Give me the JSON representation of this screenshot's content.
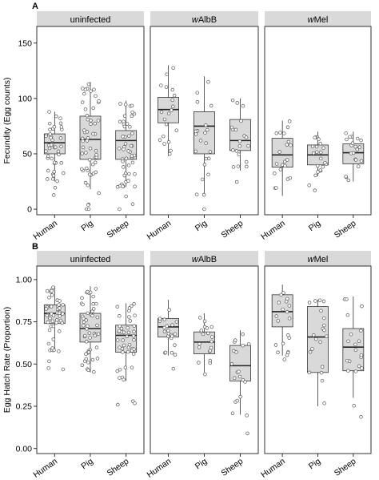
{
  "panels": [
    {
      "tag": "A",
      "ylabel": "Fecundity (Egg counts)",
      "ylim": [
        -5,
        165
      ],
      "yticks": [
        0,
        50,
        100,
        150
      ],
      "ytick_labels": [
        "0",
        "50",
        "100",
        "150"
      ],
      "facets": [
        {
          "label": "uninfected",
          "italic_prefix": ""
        },
        {
          "label": "Albb",
          "italic_prefix": "w",
          "rest": "AlbB"
        },
        {
          "label": "Mel",
          "italic_prefix": "w",
          "rest": "Mel"
        }
      ],
      "categories": [
        "Human",
        "Pig",
        "Sheep"
      ],
      "boxes": [
        [
          {
            "q1": 50,
            "median": 60,
            "q3": 68,
            "lo": 25,
            "hi": 88,
            "n": 45
          },
          {
            "q1": 45,
            "median": 63,
            "q3": 84,
            "lo": 18,
            "hi": 115,
            "n": 55
          },
          {
            "q1": 45,
            "median": 62,
            "q3": 71,
            "lo": 20,
            "hi": 98,
            "n": 50
          }
        ],
        [
          {
            "q1": 78,
            "median": 90,
            "q3": 101,
            "lo": 48,
            "hi": 130,
            "n": 20
          },
          {
            "q1": 50,
            "median": 75,
            "q3": 88,
            "lo": 12,
            "hi": 120,
            "n": 22
          },
          {
            "q1": 53,
            "median": 62,
            "q3": 81,
            "lo": 35,
            "hi": 100,
            "n": 20
          }
        ],
        [
          {
            "q1": 38,
            "median": 49,
            "q3": 64,
            "lo": 12,
            "hi": 80,
            "n": 20
          },
          {
            "q1": 40,
            "median": 49,
            "q3": 58,
            "lo": 30,
            "hi": 70,
            "n": 22
          },
          {
            "q1": 41,
            "median": 51,
            "q3": 59,
            "lo": 25,
            "hi": 70,
            "n": 20
          }
        ]
      ]
    },
    {
      "tag": "B",
      "ylabel": "Egg Hatch Rate (Proportion)",
      "ylim": [
        -0.03,
        1.08
      ],
      "yticks": [
        0,
        0.25,
        0.5,
        0.75,
        1
      ],
      "ytick_labels": [
        "0.00",
        "0.25",
        "0.50",
        "0.75",
        "1.00"
      ],
      "facets": [
        {
          "label": "uninfected",
          "italic_prefix": ""
        },
        {
          "label": "AlbB",
          "italic_prefix": "w",
          "rest": "AlbB"
        },
        {
          "label": "Mel",
          "italic_prefix": "w",
          "rest": "Mel"
        }
      ],
      "categories": [
        "Human",
        "Pig",
        "Sheep"
      ],
      "boxes": [
        [
          {
            "q1": 0.74,
            "median": 0.8,
            "q3": 0.85,
            "lo": 0.58,
            "hi": 0.96,
            "n": 50
          },
          {
            "q1": 0.63,
            "median": 0.71,
            "q3": 0.8,
            "lo": 0.45,
            "hi": 0.96,
            "n": 50
          },
          {
            "q1": 0.57,
            "median": 0.67,
            "q3": 0.73,
            "lo": 0.4,
            "hi": 0.86,
            "n": 45
          }
        ],
        [
          {
            "q1": 0.66,
            "median": 0.72,
            "q3": 0.77,
            "lo": 0.55,
            "hi": 0.88,
            "n": 22
          },
          {
            "q1": 0.56,
            "median": 0.63,
            "q3": 0.69,
            "lo": 0.45,
            "hi": 0.8,
            "n": 20
          },
          {
            "q1": 0.4,
            "median": 0.49,
            "q3": 0.61,
            "lo": 0.2,
            "hi": 0.7,
            "n": 20
          }
        ],
        [
          {
            "q1": 0.72,
            "median": 0.81,
            "q3": 0.91,
            "lo": 0.55,
            "hi": 0.97,
            "n": 20
          },
          {
            "q1": 0.45,
            "median": 0.66,
            "q3": 0.84,
            "lo": 0.25,
            "hi": 0.88,
            "n": 20
          },
          {
            "q1": 0.46,
            "median": 0.6,
            "q3": 0.71,
            "lo": 0.3,
            "hi": 0.9,
            "n": 20
          }
        ]
      ]
    }
  ],
  "chart_data": [
    {
      "type": "box",
      "title": "A",
      "ylabel": "Fecundity (Egg counts)",
      "facets": [
        "uninfected",
        "wAlbB",
        "wMel"
      ],
      "categories": [
        "Human",
        "Pig",
        "Sheep"
      ],
      "series": [
        {
          "name": "uninfected",
          "medians": [
            60,
            63,
            62
          ],
          "q1": [
            50,
            45,
            45
          ],
          "q3": [
            68,
            84,
            71
          ]
        },
        {
          "name": "wAlbB",
          "medians": [
            90,
            75,
            62
          ],
          "q1": [
            78,
            50,
            53
          ],
          "q3": [
            101,
            88,
            81
          ]
        },
        {
          "name": "wMel",
          "medians": [
            49,
            49,
            51
          ],
          "q1": [
            38,
            40,
            41
          ],
          "q3": [
            64,
            58,
            59
          ]
        }
      ],
      "ylim": [
        -5,
        165
      ],
      "grid": false
    },
    {
      "type": "box",
      "title": "B",
      "ylabel": "Egg Hatch Rate (Proportion)",
      "facets": [
        "uninfected",
        "wAlbB",
        "wMel"
      ],
      "categories": [
        "Human",
        "Pig",
        "Sheep"
      ],
      "series": [
        {
          "name": "uninfected",
          "medians": [
            0.8,
            0.71,
            0.67
          ],
          "q1": [
            0.74,
            0.63,
            0.57
          ],
          "q3": [
            0.85,
            0.8,
            0.73
          ]
        },
        {
          "name": "wAlbB",
          "medians": [
            0.72,
            0.63,
            0.49
          ],
          "q1": [
            0.66,
            0.56,
            0.4
          ],
          "q3": [
            0.77,
            0.69,
            0.61
          ]
        },
        {
          "name": "wMel",
          "medians": [
            0.81,
            0.66,
            0.6
          ],
          "q1": [
            0.72,
            0.45,
            0.46
          ],
          "q3": [
            0.91,
            0.84,
            0.71
          ]
        }
      ],
      "ylim": [
        -0.03,
        1.08
      ],
      "grid": false
    }
  ],
  "style": {
    "box_fill": "#d9d9d9",
    "strip_fill": "#d9d9d9",
    "point_fill": "#ffffff",
    "point_stroke": "#555555",
    "line": "#333333"
  }
}
